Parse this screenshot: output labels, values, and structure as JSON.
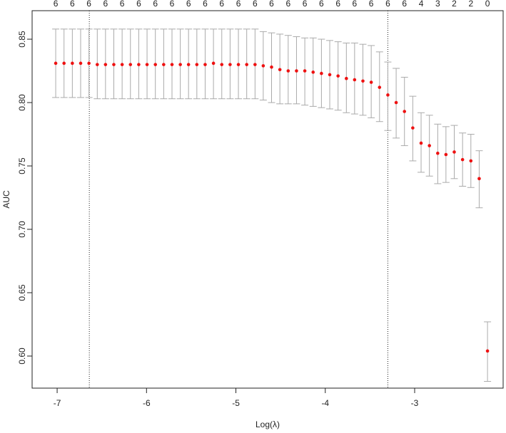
{
  "chart_data": {
    "type": "errorbar",
    "xlabel": "Log(λ)",
    "ylabel": "AUC",
    "x": [
      -7.016,
      -6.923,
      -6.83,
      -6.737,
      -6.644,
      -6.551,
      -6.459,
      -6.366,
      -6.273,
      -6.18,
      -6.087,
      -5.994,
      -5.901,
      -5.808,
      -5.715,
      -5.622,
      -5.53,
      -5.437,
      -5.344,
      -5.251,
      -5.158,
      -5.065,
      -4.972,
      -4.879,
      -4.786,
      -4.694,
      -4.601,
      -4.508,
      -4.415,
      -4.322,
      -4.229,
      -4.136,
      -4.043,
      -3.95,
      -3.857,
      -3.764,
      -3.672,
      -3.579,
      -3.486,
      -3.393,
      -3.3,
      -3.207,
      -3.114,
      -3.021,
      -2.928,
      -2.835,
      -2.742,
      -2.65,
      -2.557,
      -2.464,
      -2.371,
      -2.278,
      -2.185
    ],
    "values": [
      0.831,
      0.831,
      0.831,
      0.831,
      0.831,
      0.83,
      0.83,
      0.83,
      0.83,
      0.83,
      0.83,
      0.83,
      0.83,
      0.83,
      0.83,
      0.83,
      0.83,
      0.83,
      0.83,
      0.831,
      0.83,
      0.83,
      0.83,
      0.83,
      0.83,
      0.829,
      0.828,
      0.826,
      0.825,
      0.825,
      0.825,
      0.824,
      0.823,
      0.822,
      0.821,
      0.819,
      0.818,
      0.817,
      0.816,
      0.812,
      0.806,
      0.8,
      0.793,
      0.78,
      0.768,
      0.766,
      0.76,
      0.759,
      0.761,
      0.755,
      0.754,
      0.74,
      0.604
    ],
    "upper": [
      0.858,
      0.858,
      0.858,
      0.858,
      0.858,
      0.858,
      0.858,
      0.858,
      0.858,
      0.858,
      0.858,
      0.858,
      0.858,
      0.858,
      0.858,
      0.858,
      0.858,
      0.858,
      0.858,
      0.858,
      0.858,
      0.858,
      0.858,
      0.858,
      0.858,
      0.856,
      0.855,
      0.854,
      0.853,
      0.852,
      0.851,
      0.851,
      0.85,
      0.849,
      0.848,
      0.847,
      0.847,
      0.846,
      0.845,
      0.84,
      0.832,
      0.827,
      0.82,
      0.805,
      0.792,
      0.79,
      0.783,
      0.781,
      0.782,
      0.776,
      0.775,
      0.762,
      0.627
    ],
    "lower": [
      0.804,
      0.804,
      0.804,
      0.804,
      0.804,
      0.803,
      0.803,
      0.803,
      0.803,
      0.803,
      0.803,
      0.803,
      0.803,
      0.803,
      0.803,
      0.803,
      0.803,
      0.803,
      0.803,
      0.803,
      0.803,
      0.803,
      0.803,
      0.803,
      0.803,
      0.802,
      0.8,
      0.799,
      0.799,
      0.799,
      0.798,
      0.797,
      0.796,
      0.795,
      0.794,
      0.792,
      0.791,
      0.79,
      0.788,
      0.785,
      0.778,
      0.772,
      0.766,
      0.754,
      0.745,
      0.742,
      0.736,
      0.737,
      0.74,
      0.734,
      0.733,
      0.717,
      0.58
    ],
    "color": "#ee1111",
    "errorbar_color": "#aaaaaa",
    "top_labels": [
      6,
      6,
      6,
      6,
      6,
      6,
      6,
      6,
      6,
      6,
      6,
      6,
      6,
      6,
      6,
      6,
      6,
      6,
      6,
      6,
      6,
      6,
      4,
      3,
      2,
      2,
      0
    ],
    "vlines": [
      -6.64,
      -3.3
    ],
    "xlim": [
      -7.28,
      -2.01
    ],
    "ylim": [
      0.5747,
      0.8725
    ],
    "xticks": [
      -7,
      -6,
      -5,
      -4,
      -3
    ],
    "yticks": [
      {
        "value": 0.6,
        "label": "0.60"
      },
      {
        "value": 0.65,
        "label": "0.65"
      },
      {
        "value": 0.7,
        "label": "0.70"
      },
      {
        "value": 0.75,
        "label": "0.75"
      },
      {
        "value": 0.8,
        "label": "0.80"
      },
      {
        "value": 0.85,
        "label": "0.85"
      }
    ]
  }
}
